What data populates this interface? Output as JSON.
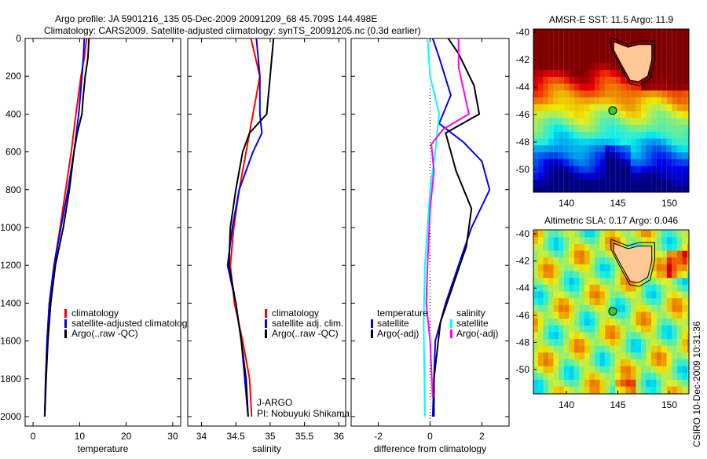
{
  "title": {
    "line1": "Argo profile: JA 5901216_135 05-Dec-2009 20091209_68 45.709S 144.498E",
    "line2": "Climatology: CARS2009. Satellite-adjusted climatology: synTS_20091205.nc (0.3d earlier)"
  },
  "footer": "CSIRO 10-Dec-2009 10:31:36",
  "annotation": {
    "line1": "J-ARGO",
    "line2": "PI: Nobuyuki Shikama"
  },
  "colors": {
    "red": "#ff0000",
    "blue": "#0000ff",
    "black": "#000000",
    "cyan": "#00ffff",
    "magenta": "#ff00ff",
    "land": "#ffc896",
    "marker": "#33cc33"
  },
  "chart_data": [
    {
      "type": "line",
      "xlabel": "temperature",
      "ylabel": "",
      "xlim": [
        -1.7,
        31.7
      ],
      "ylim": [
        2050,
        0
      ],
      "xticks": [
        0,
        10,
        20,
        30
      ],
      "yticks": [
        0,
        200,
        400,
        600,
        800,
        1000,
        1200,
        1400,
        1600,
        1800,
        2000
      ],
      "legend": [
        "climatology",
        "satellite-adjusted climatology",
        "Argo(..raw -QC)"
      ],
      "series": [
        {
          "name": "climatology",
          "color": "#ff0000",
          "depth": [
            0,
            100,
            200,
            400,
            600,
            800,
            1000,
            1200,
            1400,
            1600,
            1800,
            2000
          ],
          "values": [
            11.5,
            11,
            10.3,
            9.2,
            8.2,
            7,
            5.8,
            4.5,
            3.5,
            3,
            2.7,
            2.5
          ]
        },
        {
          "name": "satellite-adjusted climatology",
          "color": "#0000ff",
          "depth": [
            0,
            100,
            200,
            400,
            600,
            800,
            1000,
            1200,
            1400,
            1600,
            1800,
            2000
          ],
          "values": [
            11,
            10.8,
            10.5,
            9.8,
            8.8,
            7.5,
            6,
            4.5,
            3.5,
            3,
            2.7,
            2.5
          ]
        },
        {
          "name": "Argo(..raw -QC)",
          "color": "#000000",
          "depth": [
            0,
            100,
            200,
            300,
            400,
            500,
            600,
            800,
            1000,
            1200,
            1400,
            1600,
            1800,
            2000
          ],
          "values": [
            12,
            11.8,
            11.2,
            10.8,
            10.5,
            9.5,
            8.8,
            7.8,
            6.5,
            4.8,
            3.8,
            3.2,
            2.8,
            2.5
          ]
        }
      ]
    },
    {
      "type": "line",
      "xlabel": "salinity",
      "xlim": [
        33.8,
        36.1
      ],
      "ylim": [
        2050,
        0
      ],
      "xticks": [
        34,
        34.5,
        35,
        35.5,
        36
      ],
      "legend": [
        "climatology",
        "satellite adj. clim.",
        "Argo(..raw -QC)"
      ],
      "series": [
        {
          "name": "climatology",
          "color": "#ff0000",
          "depth": [
            0,
            200,
            400,
            600,
            800,
            1000,
            1200,
            1400,
            1600,
            1800,
            2000
          ],
          "values": [
            34.72,
            34.85,
            34.75,
            34.65,
            34.55,
            34.47,
            34.42,
            34.48,
            34.6,
            34.7,
            34.73
          ]
        },
        {
          "name": "satellite adj. clim.",
          "color": "#0000ff",
          "depth": [
            0,
            200,
            400,
            500,
            600,
            800,
            1000,
            1200,
            1400,
            1600,
            2000
          ],
          "values": [
            34.8,
            34.85,
            34.85,
            34.88,
            34.75,
            34.55,
            34.45,
            34.38,
            34.5,
            34.58,
            34.68
          ]
        },
        {
          "name": "Argo(..raw -QC)",
          "color": "#000000",
          "depth": [
            0,
            200,
            400,
            500,
            600,
            800,
            1000,
            1200,
            1400,
            1600,
            1800,
            2000
          ],
          "values": [
            35.05,
            35.0,
            34.95,
            34.7,
            34.6,
            34.5,
            34.42,
            34.4,
            34.5,
            34.58,
            34.65,
            34.68
          ]
        }
      ]
    },
    {
      "type": "line",
      "xlabel": "difference from climatology",
      "xlim": [
        -3.05,
        3.05
      ],
      "ylim": [
        2050,
        0
      ],
      "xticks": [
        -2,
        0,
        2
      ],
      "legend_groups": [
        {
          "title": "temperature",
          "items": [
            "satellite",
            "Argo(-adj)"
          ]
        },
        {
          "title": "salinity",
          "items": [
            "satellite",
            "Argo(-adj)"
          ]
        }
      ],
      "series": [
        {
          "name": "temperature satellite",
          "color": "#0000ff",
          "depth": [
            0,
            100,
            300,
            450,
            550,
            650,
            800,
            1000,
            1200,
            1400,
            1600,
            2000
          ],
          "values": [
            0.1,
            0.35,
            0.8,
            0.35,
            1.3,
            2.0,
            2.3,
            1.6,
            1.1,
            0.6,
            0.2,
            0.1
          ]
        },
        {
          "name": "temperature Argo(-adj)",
          "color": "#000000",
          "depth": [
            0,
            80,
            250,
            400,
            500,
            700,
            900,
            1100,
            1500,
            1800,
            2000
          ],
          "values": [
            0.7,
            1.1,
            1.7,
            1.9,
            0.6,
            1.0,
            1.6,
            1.4,
            0.4,
            0.15,
            0.15
          ]
        },
        {
          "name": "salinity satellite",
          "color": "#00ffff",
          "depth": [
            0,
            200,
            400,
            600,
            800,
            1000,
            1200,
            1500,
            2000
          ],
          "values": [
            -0.1,
            0,
            0.35,
            0.2,
            0,
            -0.1,
            -0.2,
            -0.25,
            -0.2
          ]
        },
        {
          "name": "salinity Argo(-adj)",
          "color": "#ff00ff",
          "depth": [
            0,
            150,
            400,
            480,
            560,
            700,
            900,
            1200,
            1400,
            1600,
            1900
          ],
          "values": [
            1.1,
            1.1,
            1.5,
            0.5,
            0.05,
            0.15,
            0,
            -0.1,
            -0.15,
            0,
            0.1
          ]
        }
      ]
    }
  ],
  "maps": [
    {
      "title": "AMSR-E SST: 11.5 Argo: 11.9",
      "field": "sst",
      "xticks": [
        140,
        145,
        150
      ],
      "yticks": [
        -40,
        -42,
        -44,
        -46,
        -48,
        -50
      ],
      "marker": {
        "lon": 144.498,
        "lat": -45.709
      }
    },
    {
      "title": "Altimetric SLA: 0.17 Argo: 0.046",
      "field": "sla",
      "xticks": [
        140,
        145,
        150
      ],
      "yticks": [
        -40,
        -42,
        -44,
        -46,
        -48,
        -50
      ],
      "marker": {
        "lon": 144.498,
        "lat": -45.709
      }
    }
  ]
}
